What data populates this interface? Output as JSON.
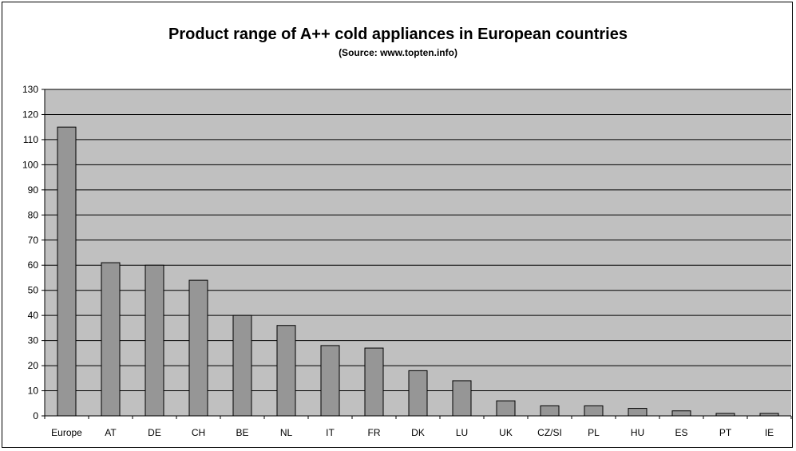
{
  "chart_data": {
    "type": "bar",
    "title": "Product range of A++ cold appliances in European countries",
    "subtitle": "(Source: www.topten.info)",
    "xlabel": "",
    "ylabel": "",
    "categories": [
      "Europe",
      "AT",
      "DE",
      "CH",
      "BE",
      "NL",
      "IT",
      "FR",
      "DK",
      "LU",
      "UK",
      "CZ/SI",
      "PL",
      "HU",
      "ES",
      "PT",
      "IE"
    ],
    "values": [
      115,
      61,
      60,
      54,
      40,
      36,
      28,
      27,
      18,
      14,
      6,
      4,
      4,
      3,
      2,
      1,
      1
    ],
    "ylim": [
      0,
      130
    ],
    "yticks": [
      0,
      10,
      20,
      30,
      40,
      50,
      60,
      70,
      80,
      90,
      100,
      110,
      120,
      130
    ],
    "grid": true,
    "legend": "none",
    "colors": {
      "plot_background": "#c0c0c0",
      "bar_fill": "#969696",
      "gridline": "#000000",
      "axis": "#000000"
    }
  }
}
